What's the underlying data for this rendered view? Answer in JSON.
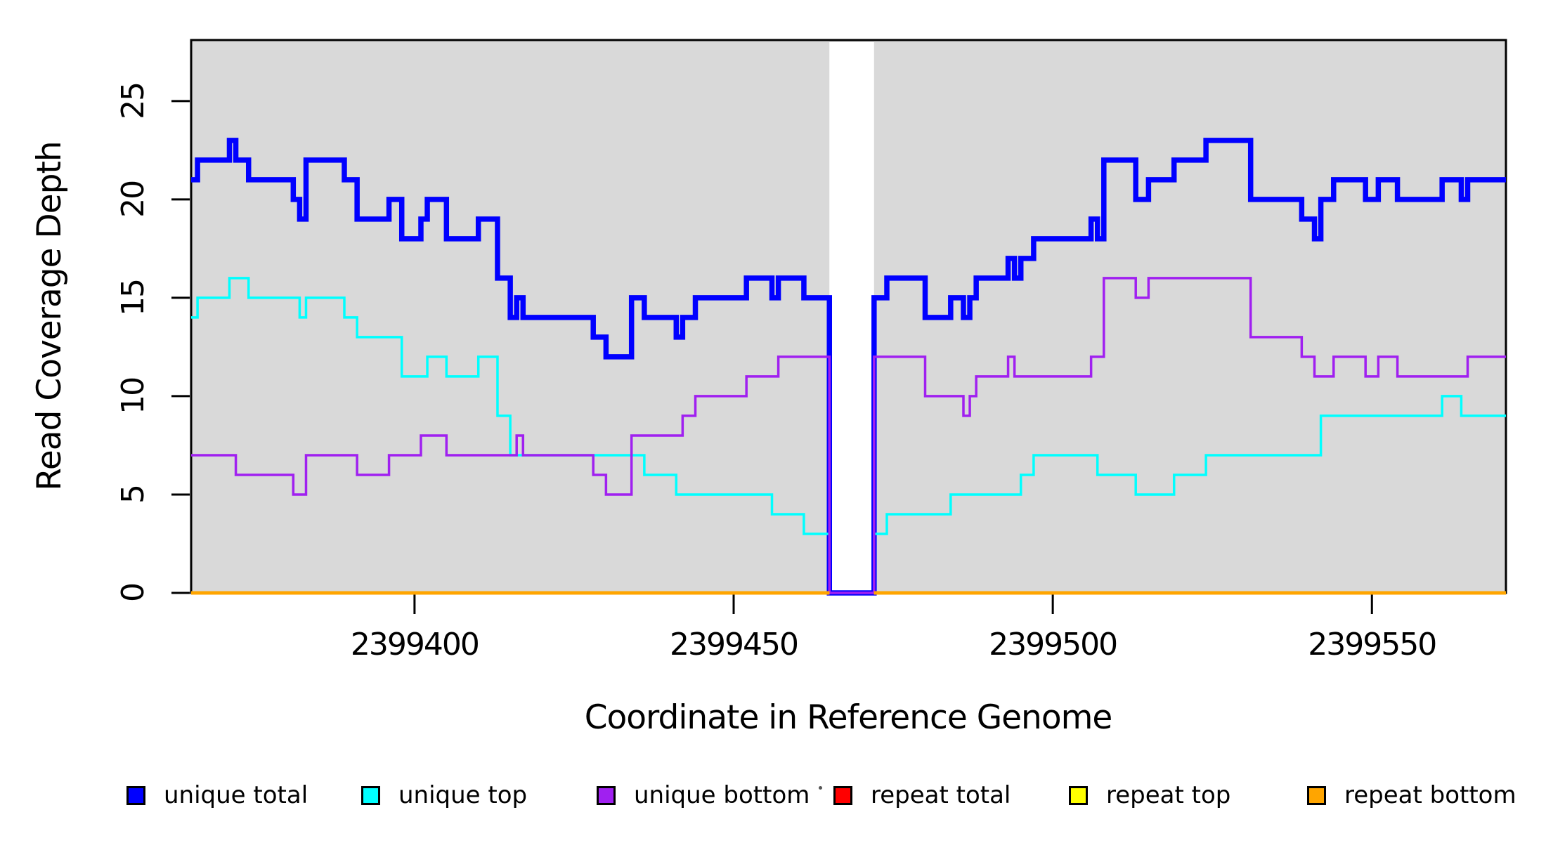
{
  "chart_data": {
    "type": "step-line",
    "title": "",
    "xlabel": "Coordinate in Reference Genome",
    "ylabel": "Read Coverage Depth",
    "x_range": [
      2399365,
      2399571
    ],
    "ylim": [
      0,
      28.1
    ],
    "x_ticks": [
      2399400,
      2399450,
      2399500,
      2399550
    ],
    "y_ticks": [
      0,
      5,
      10,
      15,
      20,
      25
    ],
    "plot_background": "#d9d9d9",
    "gap_region": {
      "start": 2399465,
      "end": 2399472,
      "color": "#ffffff"
    },
    "grid": false,
    "legend_position": "bottom",
    "series": [
      {
        "name": "unique total",
        "color": "#0000ff",
        "stroke_width": 7.5,
        "segments": [
          {
            "end": 2399571,
            "steps": [
              [
                2399365,
                21
              ],
              [
                2399366,
                22
              ],
              [
                2399371,
                23
              ],
              [
                2399372,
                22
              ],
              [
                2399374,
                21
              ],
              [
                2399381,
                20
              ],
              [
                2399382,
                19
              ],
              [
                2399383,
                22
              ],
              [
                2399389,
                21
              ],
              [
                2399391,
                19
              ],
              [
                2399396,
                20
              ],
              [
                2399398,
                18
              ],
              [
                2399401,
                19
              ],
              [
                2399402,
                20
              ],
              [
                2399405,
                18
              ],
              [
                2399410,
                19
              ],
              [
                2399413,
                16
              ],
              [
                2399415,
                14
              ],
              [
                2399416,
                15
              ],
              [
                2399417,
                14
              ],
              [
                2399428,
                13
              ],
              [
                2399430,
                12
              ],
              [
                2399434,
                15
              ],
              [
                2399436,
                14
              ],
              [
                2399441,
                13
              ],
              [
                2399442,
                14
              ],
              [
                2399444,
                15
              ],
              [
                2399452,
                16
              ],
              [
                2399456,
                15
              ],
              [
                2399457,
                16
              ],
              [
                2399461,
                15
              ],
              [
                2399465,
                0
              ],
              [
                2399472,
                15
              ],
              [
                2399474,
                16
              ],
              [
                2399480,
                14
              ],
              [
                2399484,
                15
              ],
              [
                2399486,
                14
              ],
              [
                2399487,
                15
              ],
              [
                2399488,
                16
              ],
              [
                2399493,
                17
              ],
              [
                2399494,
                16
              ],
              [
                2399495,
                17
              ],
              [
                2399497,
                18
              ],
              [
                2399506,
                19
              ],
              [
                2399507,
                18
              ],
              [
                2399508,
                22
              ],
              [
                2399513,
                20
              ],
              [
                2399515,
                21
              ],
              [
                2399519,
                22
              ],
              [
                2399524,
                23
              ],
              [
                2399531,
                20
              ],
              [
                2399539,
                19
              ],
              [
                2399541,
                18
              ],
              [
                2399542,
                20
              ],
              [
                2399544,
                21
              ],
              [
                2399549,
                20
              ],
              [
                2399551,
                21
              ],
              [
                2399554,
                20
              ],
              [
                2399561,
                21
              ],
              [
                2399564,
                20
              ],
              [
                2399565,
                21
              ]
            ]
          }
        ]
      },
      {
        "name": "unique top",
        "color": "#00ffff",
        "stroke_width": 3.5,
        "segments": [
          {
            "end": 2399465,
            "steps": [
              [
                2399365,
                14
              ],
              [
                2399366,
                15
              ],
              [
                2399371,
                16
              ],
              [
                2399374,
                15
              ],
              [
                2399382,
                14
              ],
              [
                2399383,
                15
              ],
              [
                2399389,
                14
              ],
              [
                2399391,
                13
              ],
              [
                2399398,
                11
              ],
              [
                2399402,
                12
              ],
              [
                2399405,
                11
              ],
              [
                2399410,
                12
              ],
              [
                2399413,
                9
              ],
              [
                2399415,
                7
              ],
              [
                2399436,
                6
              ],
              [
                2399441,
                5
              ],
              [
                2399456,
                4
              ],
              [
                2399461,
                3
              ]
            ]
          },
          {
            "end": 2399571,
            "steps": [
              [
                2399472,
                3
              ],
              [
                2399474,
                4
              ],
              [
                2399484,
                5
              ],
              [
                2399495,
                6
              ],
              [
                2399497,
                7
              ],
              [
                2399507,
                6
              ],
              [
                2399513,
                5
              ],
              [
                2399519,
                6
              ],
              [
                2399524,
                7
              ],
              [
                2399542,
                9
              ],
              [
                2399561,
                10
              ],
              [
                2399564,
                9
              ]
            ]
          }
        ]
      },
      {
        "name": "unique bottom",
        "color": "#a020f0",
        "stroke_width": 3.5,
        "segments": [
          {
            "end": 2399571,
            "steps": [
              [
                2399365,
                7
              ],
              [
                2399372,
                6
              ],
              [
                2399381,
                5
              ],
              [
                2399383,
                7
              ],
              [
                2399391,
                6
              ],
              [
                2399396,
                7
              ],
              [
                2399401,
                8
              ],
              [
                2399405,
                7
              ],
              [
                2399416,
                8
              ],
              [
                2399417,
                7
              ],
              [
                2399428,
                6
              ],
              [
                2399430,
                5
              ],
              [
                2399434,
                8
              ],
              [
                2399442,
                9
              ],
              [
                2399444,
                10
              ],
              [
                2399452,
                11
              ],
              [
                2399457,
                12
              ],
              [
                2399465,
                0
              ],
              [
                2399472,
                12
              ],
              [
                2399480,
                10
              ],
              [
                2399486,
                9
              ],
              [
                2399487,
                10
              ],
              [
                2399488,
                11
              ],
              [
                2399493,
                12
              ],
              [
                2399494,
                11
              ],
              [
                2399506,
                12
              ],
              [
                2399508,
                16
              ],
              [
                2399513,
                15
              ],
              [
                2399515,
                16
              ],
              [
                2399531,
                13
              ],
              [
                2399539,
                12
              ],
              [
                2399541,
                11
              ],
              [
                2399544,
                12
              ],
              [
                2399549,
                11
              ],
              [
                2399551,
                12
              ],
              [
                2399554,
                11
              ],
              [
                2399565,
                12
              ]
            ]
          }
        ]
      },
      {
        "name": "repeat total",
        "color": "#ff0000",
        "stroke_width": 5,
        "segments": [
          {
            "end": 2399465,
            "steps": [
              [
                2399365,
                0
              ]
            ]
          },
          {
            "end": 2399571,
            "steps": [
              [
                2399472,
                0
              ]
            ]
          }
        ]
      },
      {
        "name": "repeat top",
        "color": "#ffff00",
        "stroke_width": 5,
        "segments": [
          {
            "end": 2399465,
            "steps": [
              [
                2399365,
                0
              ]
            ]
          },
          {
            "end": 2399571,
            "steps": [
              [
                2399472,
                0
              ]
            ]
          }
        ]
      },
      {
        "name": "repeat bottom",
        "color": "#ffa500",
        "stroke_width": 5,
        "segments": [
          {
            "end": 2399465,
            "steps": [
              [
                2399365,
                0
              ]
            ]
          },
          {
            "end": 2399571,
            "steps": [
              [
                2399472,
                0
              ]
            ]
          }
        ]
      }
    ]
  },
  "axes": {
    "x_label": "Coordinate in Reference Genome",
    "y_label": "Read Coverage Depth"
  },
  "legend": {
    "items": [
      {
        "label": "unique total",
        "color": "#0000ff"
      },
      {
        "label": "unique top",
        "color": "#00ffff"
      },
      {
        "label": "unique bottom",
        "color": "#a020f0"
      },
      {
        "label": "repeat total",
        "color": "#ff0000"
      },
      {
        "label": "repeat top",
        "color": "#ffff00"
      },
      {
        "label": "repeat bottom",
        "color": "#ffa500"
      }
    ]
  }
}
